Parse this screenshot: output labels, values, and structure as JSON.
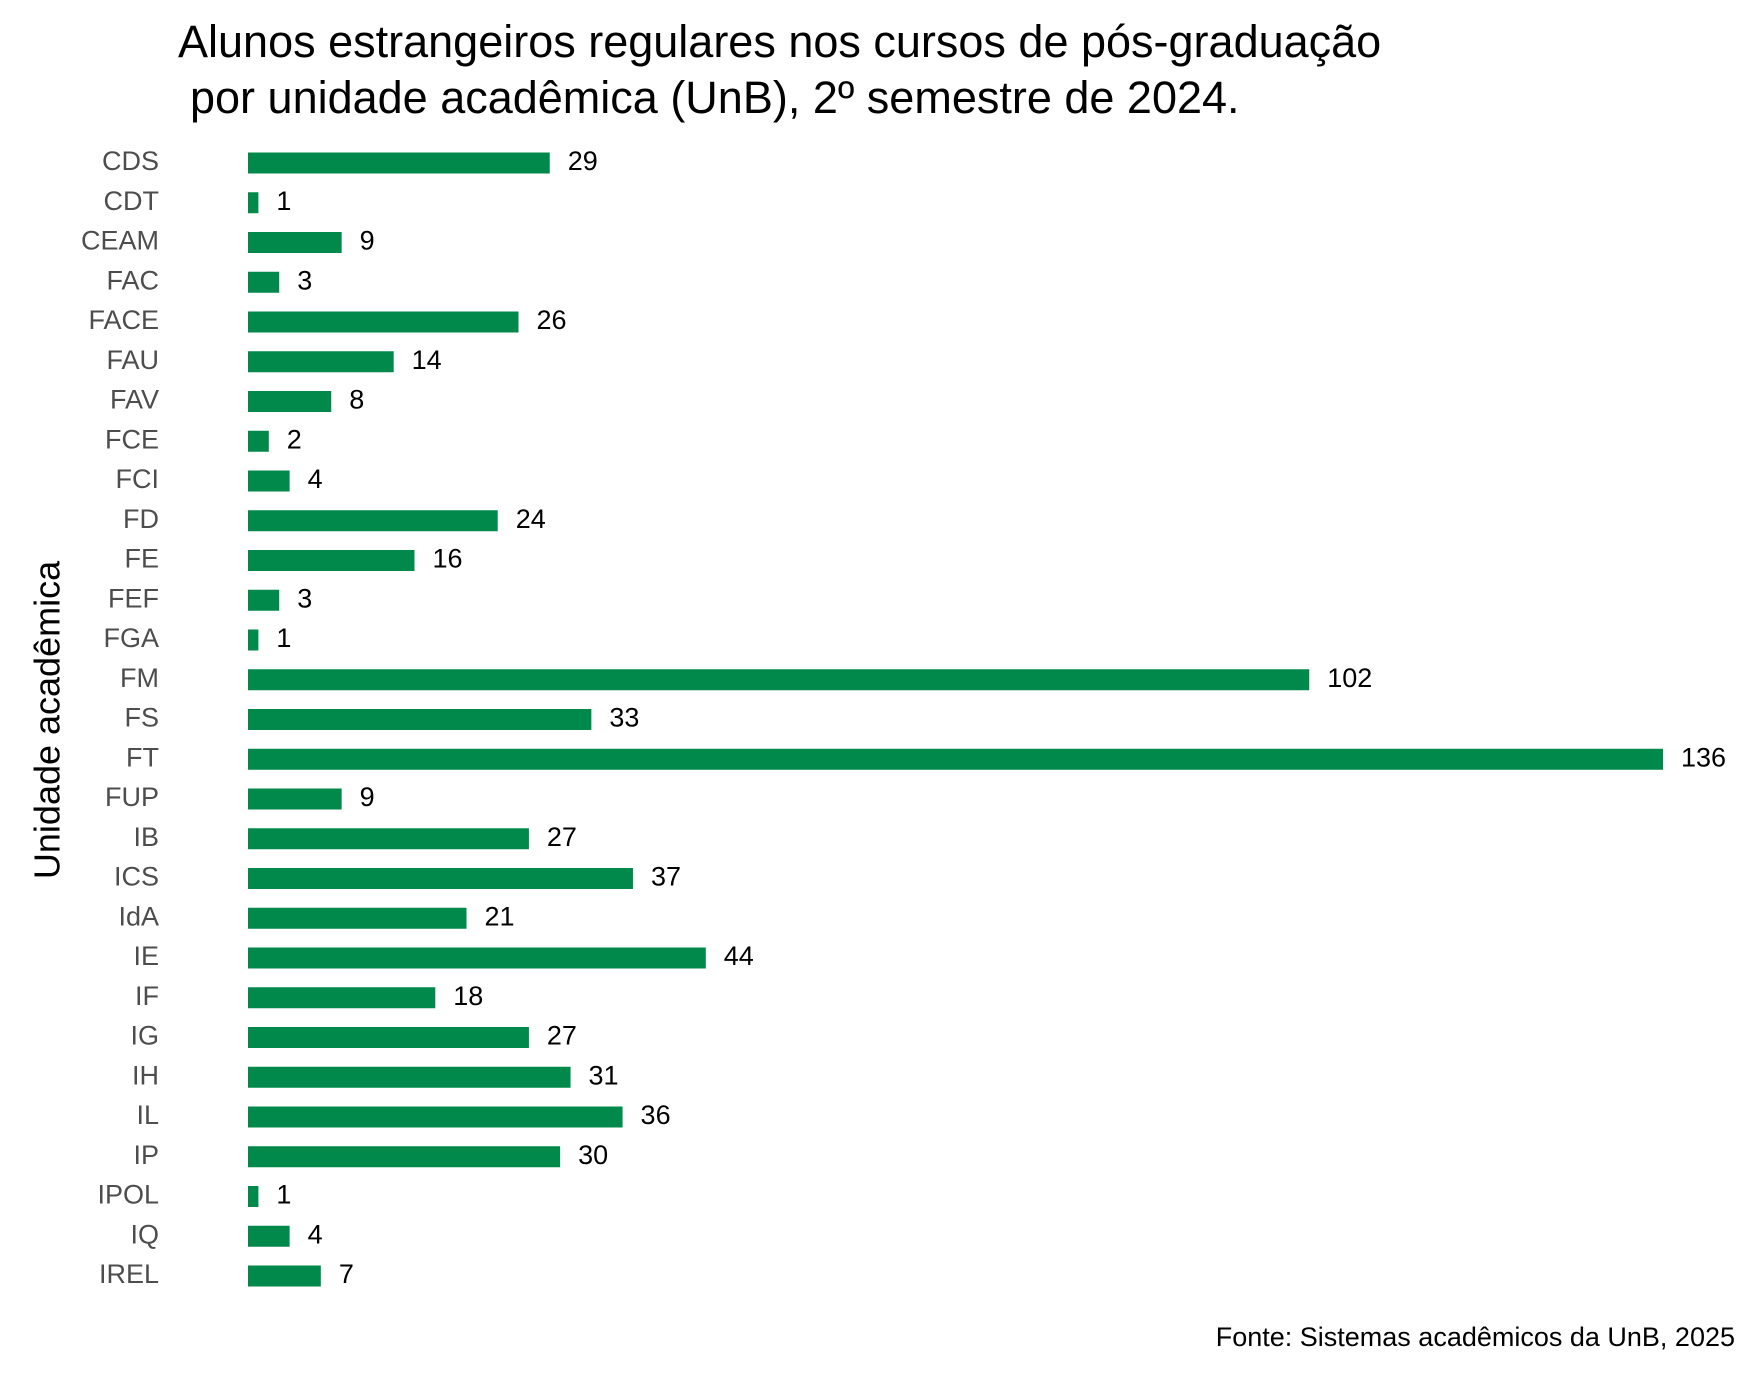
{
  "chart_data": {
    "type": "bar",
    "orientation": "horizontal",
    "title_line1": "Alunos estrangeiros regulares nos cursos de pós-graduação",
    "title_line2": "por unidade acadêmica (UnB), 2º semestre de 2024.",
    "ylabel": "Unidade acadêmica",
    "xlabel": "",
    "source": "Fonte: Sistemas acadêmicos da UnB, 2025",
    "bar_color": "#00894a",
    "grid": false,
    "xlim": [
      0,
      136
    ],
    "categories": [
      "CDS",
      "CDT",
      "CEAM",
      "FAC",
      "FACE",
      "FAU",
      "FAV",
      "FCE",
      "FCI",
      "FD",
      "FE",
      "FEF",
      "FGA",
      "FM",
      "FS",
      "FT",
      "FUP",
      "IB",
      "ICS",
      "IdA",
      "IE",
      "IF",
      "IG",
      "IH",
      "IL",
      "IP",
      "IPOL",
      "IQ",
      "IREL"
    ],
    "values": [
      29,
      1,
      9,
      3,
      26,
      14,
      8,
      2,
      4,
      24,
      16,
      3,
      1,
      102,
      33,
      136,
      9,
      27,
      37,
      21,
      44,
      18,
      27,
      31,
      36,
      30,
      1,
      4,
      7
    ]
  }
}
